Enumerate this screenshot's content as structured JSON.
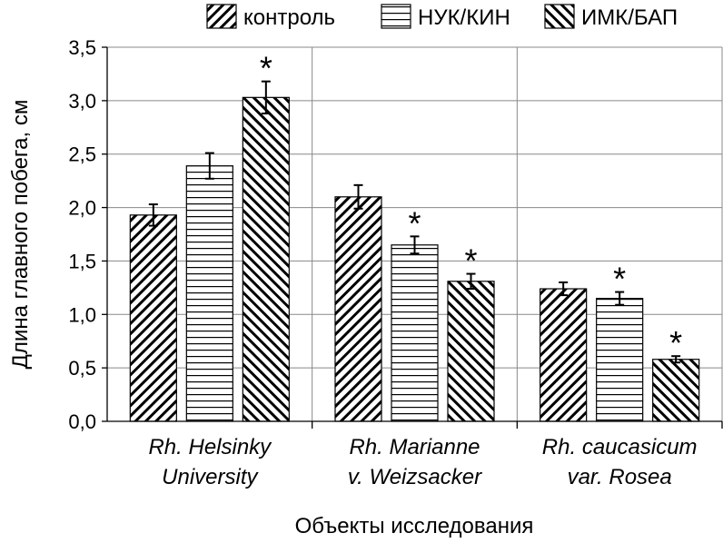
{
  "chart_data": {
    "type": "bar",
    "title": "",
    "xlabel": "Объекты исследования",
    "ylabel": "Длина главного побега, см",
    "ylim": [
      0,
      3.5
    ],
    "yticks": [
      "0,0",
      "0,5",
      "1,0",
      "1,5",
      "2,0",
      "2,5",
      "3,0",
      "3,5"
    ],
    "ytick_values": [
      0,
      0.5,
      1,
      1.5,
      2,
      2.5,
      3,
      3.5
    ],
    "grid": true,
    "legend_position": "top-right",
    "categories": [
      [
        "Rh. Helsinky",
        "University"
      ],
      [
        "Rh. Marianne",
        "v. Weizsacker"
      ],
      [
        "Rh. caucasicum",
        "var. Rosea"
      ]
    ],
    "series": [
      {
        "name": "контроль",
        "pattern": "diagonal-up",
        "values": [
          1.93,
          2.1,
          1.24
        ],
        "errors": [
          0.1,
          0.11,
          0.06
        ],
        "significant": [
          false,
          false,
          false
        ]
      },
      {
        "name": "НУК/КИН",
        "pattern": "horizontal",
        "values": [
          2.39,
          1.65,
          1.15
        ],
        "errors": [
          0.12,
          0.08,
          0.06
        ],
        "significant": [
          false,
          true,
          true
        ]
      },
      {
        "name": "ИМК/БАП",
        "pattern": "diagonal-down",
        "values": [
          3.03,
          1.31,
          0.58
        ],
        "errors": [
          0.15,
          0.07,
          0.03
        ],
        "significant": [
          true,
          true,
          true
        ]
      }
    ],
    "significance_marker": "*"
  }
}
